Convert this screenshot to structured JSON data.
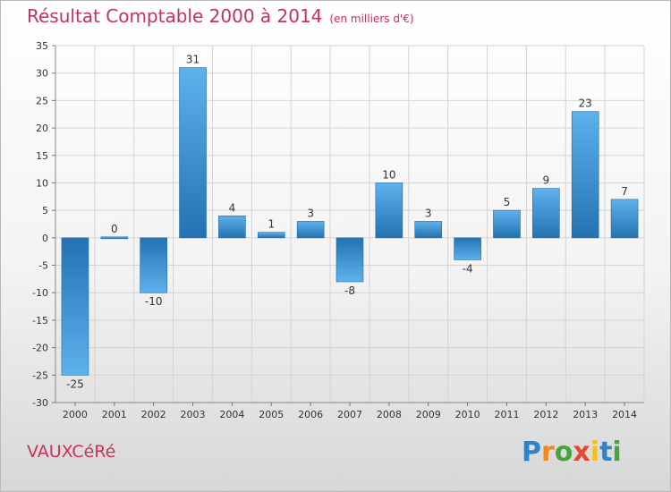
{
  "chart_data": {
    "type": "bar",
    "title": "Résultat Comptable 2000 à 2014",
    "subtitle": "(en milliers d'€)",
    "categories": [
      "2000",
      "2001",
      "2002",
      "2003",
      "2004",
      "2005",
      "2006",
      "2007",
      "2008",
      "2009",
      "2010",
      "2011",
      "2012",
      "2013",
      "2014"
    ],
    "values": [
      -25,
      0,
      -10,
      31,
      4,
      1,
      3,
      -8,
      10,
      3,
      -4,
      5,
      9,
      23,
      7
    ],
    "yticks": [
      35,
      30,
      25,
      20,
      15,
      10,
      5,
      0,
      -5,
      -10,
      -15,
      -20,
      -25,
      -30
    ],
    "ylim": [
      -30,
      35
    ],
    "xlabel": "",
    "ylabel": "",
    "grid": true,
    "bar_color_light": "#5eb2ec",
    "bar_color_dark": "#2472b1"
  },
  "commune": "VAUXCéRé",
  "logo": {
    "letters": [
      "P",
      "r",
      "o",
      "x",
      "i",
      "t",
      "i"
    ],
    "colors": [
      "#2d84c9",
      "#f08a1c",
      "#46a53b",
      "#e34a2c",
      "#f0c21a",
      "#2d84c9",
      "#46a53b"
    ]
  }
}
